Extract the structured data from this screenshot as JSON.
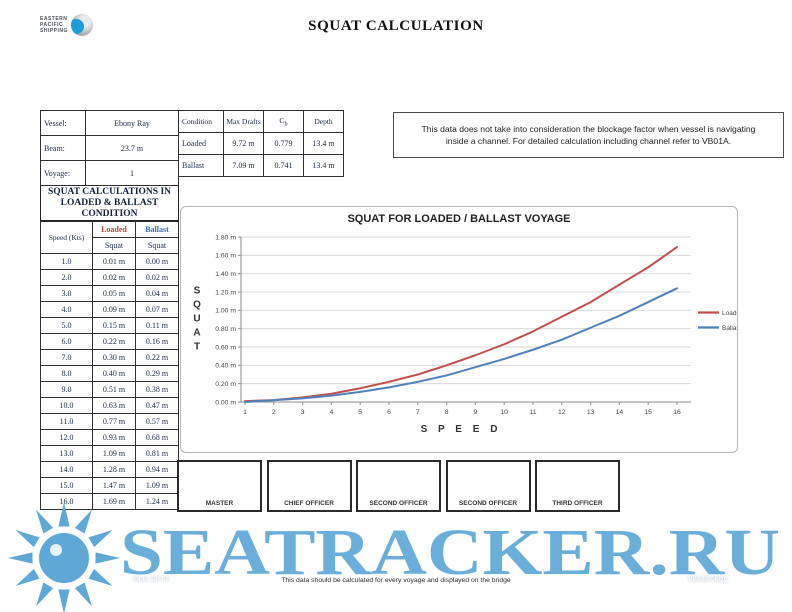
{
  "page": {
    "title": "SQUAT CALCULATION"
  },
  "logo": {
    "line1": "EASTERN",
    "line2": "PACIFIC",
    "line3": "SHIPPING"
  },
  "info_table": {
    "rows": [
      {
        "label": "Vessel:",
        "value": "Ebony Ray"
      },
      {
        "label": "Beam:",
        "value": "23.7 m"
      },
      {
        "label": "Voyage:",
        "value": "1"
      }
    ]
  },
  "left_header": "SQUAT CALCULATIONS IN LOADED & BALLAST CONDITION",
  "squat_table": {
    "col_speed": "Speed (Kts)",
    "col_loaded": "Loaded",
    "col_ballast": "Ballast",
    "subheader": "Squat",
    "loaded_color": "#c0402a",
    "ballast_color": "#2f6db5",
    "rows": [
      [
        "1.0",
        "0.01 m",
        "0.00 m"
      ],
      [
        "2.0",
        "0.02 m",
        "0.02 m"
      ],
      [
        "3.0",
        "0.05 m",
        "0.04 m"
      ],
      [
        "4.0",
        "0.09 m",
        "0.07 m"
      ],
      [
        "5.0",
        "0.15 m",
        "0.11 m"
      ],
      [
        "6.0",
        "0.22 m",
        "0.16 m"
      ],
      [
        "7.0",
        "0.30 m",
        "0.22 m"
      ],
      [
        "8.0",
        "0.40 m",
        "0.29 m"
      ],
      [
        "9.0",
        "0.51 m",
        "0.38 m"
      ],
      [
        "10.0",
        "0.63 m",
        "0.47 m"
      ],
      [
        "11.0",
        "0.77 m",
        "0.57 m"
      ],
      [
        "12.0",
        "0.93 m",
        "0.68 m"
      ],
      [
        "13.0",
        "1.09 m",
        "0.81 m"
      ],
      [
        "14.0",
        "1.28 m",
        "0.94 m"
      ],
      [
        "15.0",
        "1.47 m",
        "1.09 m"
      ],
      [
        "16.0",
        "1.69 m",
        "1.24 m"
      ]
    ]
  },
  "condition_table": {
    "header_condition": "Condition",
    "header_max_draft": "Max Drafts",
    "header_cb_main": "C",
    "header_cb_sub": "b",
    "header_depth": "Depth",
    "rows": [
      {
        "condition": "Loaded",
        "max_draft": "9.72 m",
        "cb": "0.779",
        "depth": "13.4 m"
      },
      {
        "condition": "Ballast",
        "max_draft": "7.09 m",
        "cb": "0.741",
        "depth": "13.4 m"
      }
    ]
  },
  "note": "This data does not take into consideration the blockage factor when vessel is navigating inside a channel. For detailed calculation including  channel refer to VB01A.",
  "chart_data": {
    "type": "line",
    "title": "SQUAT FOR LOADED / BALLAST VOYAGE",
    "xlabel": "SPEED",
    "ylabel": "SQUAT",
    "x": [
      1,
      2,
      3,
      4,
      5,
      6,
      7,
      8,
      9,
      10,
      11,
      12,
      13,
      14,
      15,
      16
    ],
    "series": [
      {
        "name": "Loaded",
        "color": "#c0504d",
        "values": [
          0.01,
          0.02,
          0.05,
          0.09,
          0.15,
          0.22,
          0.3,
          0.4,
          0.51,
          0.63,
          0.77,
          0.93,
          1.09,
          1.28,
          1.47,
          1.69
        ]
      },
      {
        "name": "Ballast",
        "color": "#4f81bd",
        "values": [
          0.0,
          0.02,
          0.04,
          0.07,
          0.11,
          0.16,
          0.22,
          0.29,
          0.38,
          0.47,
          0.57,
          0.68,
          0.81,
          0.94,
          1.09,
          1.24
        ]
      }
    ],
    "ylim": [
      0,
      1.8
    ],
    "ytick_step": 0.2,
    "ytick_suffix": " m",
    "grid": true,
    "legend_position": "right"
  },
  "signatures": [
    "MASTER",
    "CHIEF OFFICER",
    "SECOND OFFICER",
    "SECOND OFFICER",
    "THIRD OFFICER"
  ],
  "footer": {
    "file_ref": "FILE: ER 07",
    "center": "This data should be calculated for every voyage and displayed on the bridge",
    "doc_ref": "VB04B-06/16"
  },
  "watermark": {
    "text": "SEATRACKER.RU",
    "color": "#5fa8d6"
  }
}
